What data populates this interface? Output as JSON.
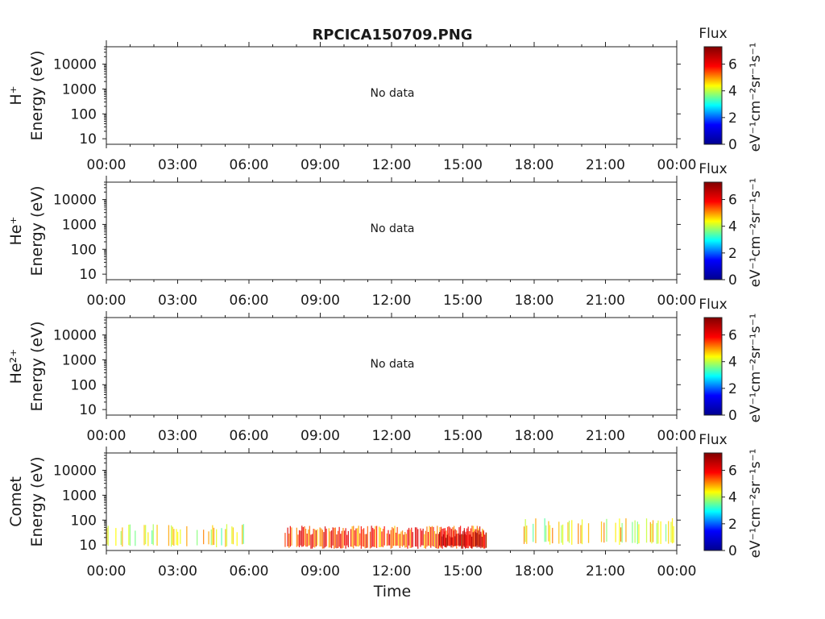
{
  "title": "RPCICA150709.PNG",
  "xlabel": "Time",
  "colorbar": {
    "label": "Flux",
    "unit": "eV⁻¹cm⁻²sr⁻¹s⁻¹",
    "ticks": [
      "0",
      "2",
      "4",
      "6"
    ],
    "range": [
      0,
      7.3
    ],
    "colormap": [
      "#00008f",
      "#0000ff",
      "#00ffff",
      "#ffff00",
      "#ff0000",
      "#800000"
    ]
  },
  "chart_data": [
    {
      "type": "heatmap",
      "name": "H+",
      "ylabel_line1": "H⁺",
      "ylabel_line2": "Energy (eV)",
      "annotation": "No data",
      "y_scale": "log",
      "ylim": [
        6,
        50000
      ],
      "yticks": [
        "10",
        "100",
        "1000",
        "10000"
      ],
      "xlim": [
        "00:00",
        "24:00"
      ],
      "xticks": [
        "00:00",
        "03:00",
        "06:00",
        "09:00",
        "12:00",
        "15:00",
        "18:00",
        "21:00",
        "00:00"
      ],
      "grid": false,
      "bands": []
    },
    {
      "type": "heatmap",
      "name": "He+",
      "ylabel_line1": "He⁺",
      "ylabel_line2": "Energy (eV)",
      "annotation": "No data",
      "y_scale": "log",
      "ylim": [
        6,
        50000
      ],
      "yticks": [
        "10",
        "100",
        "1000",
        "10000"
      ],
      "xlim": [
        "00:00",
        "24:00"
      ],
      "xticks": [
        "00:00",
        "03:00",
        "06:00",
        "09:00",
        "12:00",
        "15:00",
        "18:00",
        "21:00",
        "00:00"
      ],
      "grid": false,
      "bands": []
    },
    {
      "type": "heatmap",
      "name": "He2+",
      "ylabel_line1": "He²⁺",
      "ylabel_line2": "Energy (eV)",
      "annotation": "No data",
      "y_scale": "log",
      "ylim": [
        6,
        50000
      ],
      "yticks": [
        "10",
        "100",
        "1000",
        "10000"
      ],
      "xlim": [
        "00:00",
        "24:00"
      ],
      "xticks": [
        "00:00",
        "03:00",
        "06:00",
        "09:00",
        "12:00",
        "15:00",
        "18:00",
        "21:00",
        "00:00"
      ],
      "grid": false,
      "bands": []
    },
    {
      "type": "heatmap",
      "name": "Comet",
      "ylabel_line1": "Comet",
      "ylabel_line2": "Energy (eV)",
      "annotation": "",
      "y_scale": "log",
      "ylim": [
        6,
        50000
      ],
      "yticks": [
        "10",
        "100",
        "1000",
        "10000"
      ],
      "xlim": [
        "00:00",
        "24:00"
      ],
      "xticks": [
        "00:00",
        "03:00",
        "06:00",
        "09:00",
        "12:00",
        "15:00",
        "18:00",
        "21:00",
        "00:00"
      ],
      "grid": false,
      "bands": [
        {
          "t_start": "00:00",
          "t_end": "06:10",
          "e_low": 8,
          "e_high": 70,
          "flux": 4.5,
          "density": 0.35
        },
        {
          "t_start": "07:30",
          "t_end": "16:00",
          "e_low": 7,
          "e_high": 60,
          "flux": 5.8,
          "density": 0.9
        },
        {
          "t_start": "14:00",
          "t_end": "16:00",
          "e_low": 7,
          "e_high": 40,
          "flux": 6.8,
          "density": 1.0
        },
        {
          "t_start": "17:30",
          "t_end": "24:00",
          "e_low": 10,
          "e_high": 120,
          "flux": 4.6,
          "density": 0.35
        }
      ]
    }
  ]
}
